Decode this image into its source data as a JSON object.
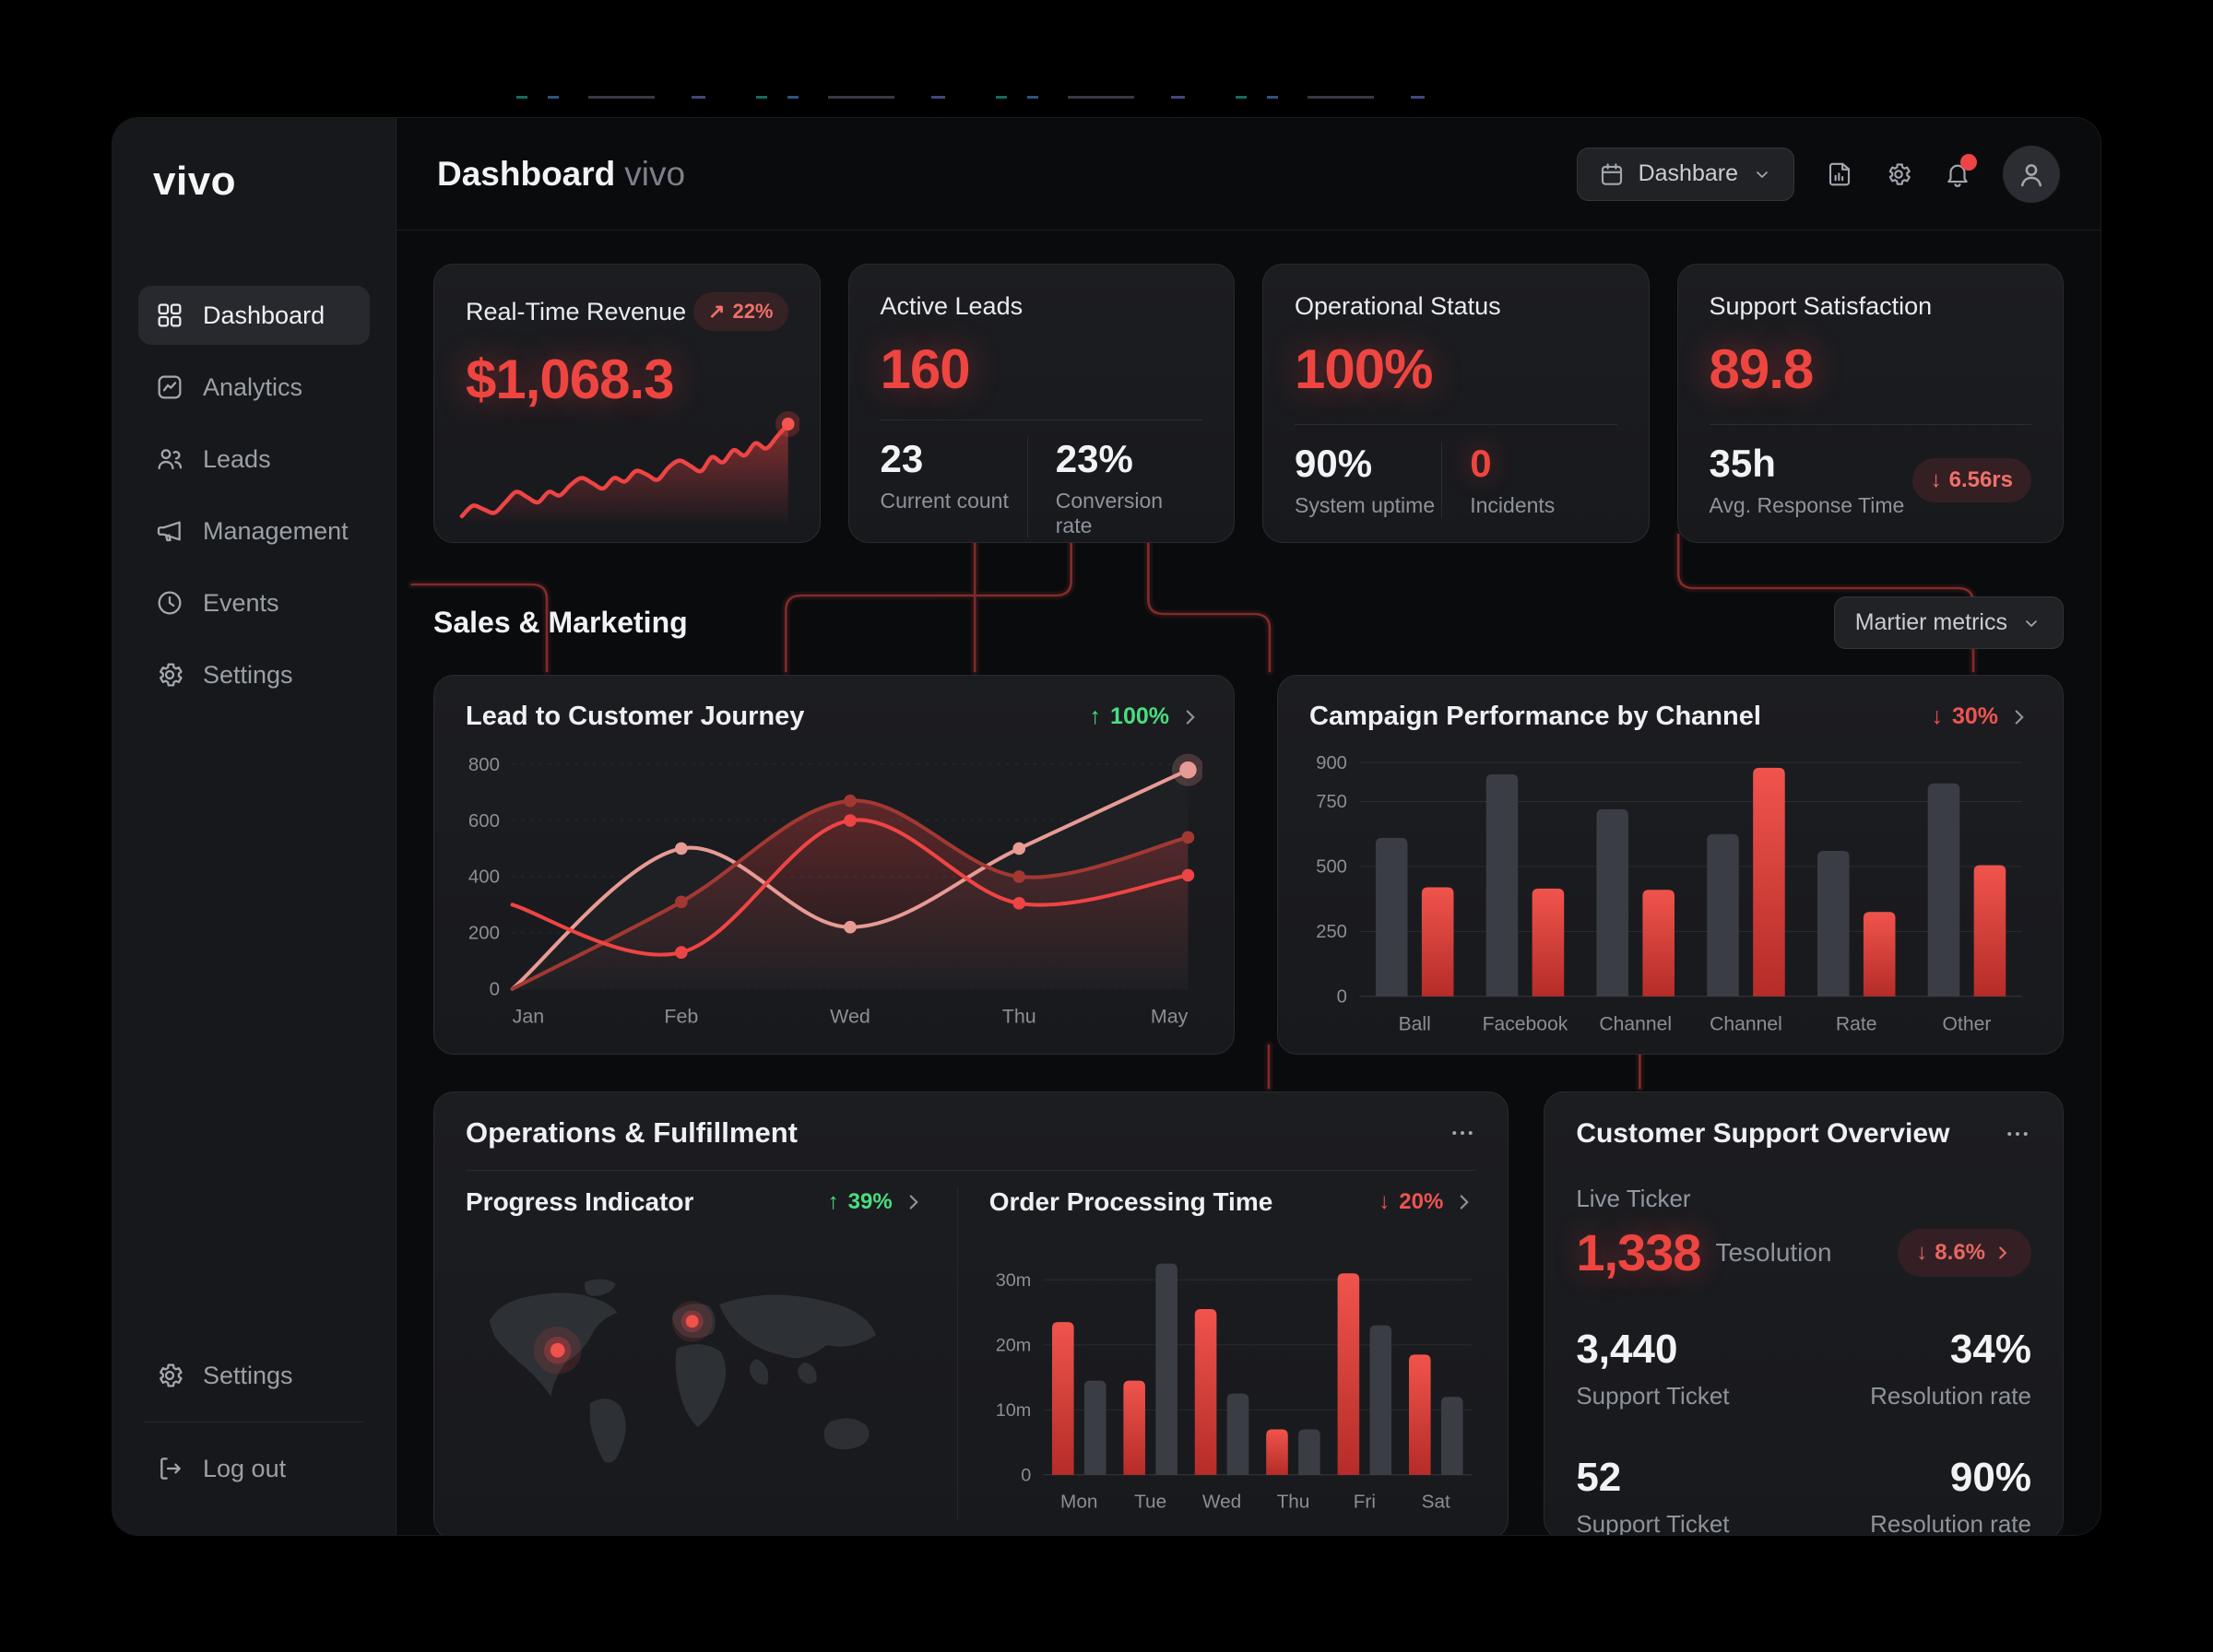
{
  "brand": {
    "logo": "vivo"
  },
  "sidebar": {
    "items": [
      {
        "label": "Dashboard"
      },
      {
        "label": "Analytics"
      },
      {
        "label": "Leads"
      },
      {
        "label": "Management"
      },
      {
        "label": "Events"
      },
      {
        "label": "Settings"
      }
    ],
    "footer": [
      {
        "label": "Settings"
      },
      {
        "label": "Log out"
      }
    ]
  },
  "header": {
    "title": "Dashboard",
    "subtitle": "vivo",
    "range_picker": "Dashbare"
  },
  "kpis": [
    {
      "title": "Real-Time Revenue",
      "badge_arrow": "↗",
      "badge": "22%",
      "value": "$1,068.3"
    },
    {
      "title": "Active Leads",
      "value": "160",
      "stats": [
        {
          "value": "23",
          "label": "Current count"
        },
        {
          "value": "23%",
          "label": "Conversion rate"
        }
      ]
    },
    {
      "title": "Operational Status",
      "value": "100%",
      "stats": [
        {
          "value": "90%",
          "label": "System uptime"
        },
        {
          "value": "0",
          "label": "Incidents"
        }
      ]
    },
    {
      "title": "Support Satisfaction",
      "value": "89.8",
      "stat_value": "35h",
      "stat_label": "Avg. Response Time",
      "badge_arrow": "↓",
      "badge": "6.56rs"
    }
  ],
  "sales": {
    "title": "Sales & Marketing",
    "metrics_picker": "Martier metrics"
  },
  "journey": {
    "title": "Lead to Customer Journey",
    "delta_arrow": "↑",
    "delta": "100%"
  },
  "campaign": {
    "title": "Campaign Performance by Channel",
    "delta_arrow": "↓",
    "delta": "30%"
  },
  "operations": {
    "title": "Operations & Fulfillment",
    "progress": {
      "title": "Progress Indicator",
      "delta_arrow": "↑",
      "delta": "39%"
    },
    "order": {
      "title": "Order Processing Time",
      "delta_arrow": "↓",
      "delta": "20%"
    }
  },
  "support": {
    "title": "Customer Support Overview",
    "live_label": "Live Ticker",
    "live_value": "1,338",
    "live_suffix": "Tesolution",
    "live_delta_arrow": "↓",
    "live_delta": "8.6%",
    "rows": [
      {
        "left_value": "3,440",
        "left_label": "Support Ticket",
        "right_value": "34%",
        "right_label": "Resolution rate"
      },
      {
        "left_value": "52",
        "left_label": "Support Ticket",
        "right_value": "90%",
        "right_label": "Resolution rate"
      }
    ]
  },
  "colors": {
    "accent_red": "#ef4444",
    "green": "#4ade80",
    "bar_gray": "#3a3d43",
    "grid": "#2b2d31"
  },
  "chart_data": [
    {
      "id": "revenue-spark",
      "type": "spark",
      "title": "Real-Time Revenue sparkline",
      "color": "#ef4444",
      "values": [
        10,
        16,
        14,
        12,
        18,
        24,
        21,
        18,
        24,
        22,
        28,
        32,
        29,
        26,
        32,
        30,
        36,
        34,
        31,
        38,
        42,
        39,
        36,
        44,
        41,
        48,
        45,
        52,
        49,
        56,
        63
      ]
    },
    {
      "id": "journey",
      "type": "line",
      "title": "Lead to Customer Journey",
      "x": [
        "Jan",
        "Feb",
        "Wed",
        "Thu",
        "May"
      ],
      "ylim": [
        0,
        800
      ],
      "yticks": [
        0,
        200,
        400,
        600,
        800
      ],
      "grid": "dashed",
      "series": [
        {
          "name": "journey-top",
          "color": "#e79b94",
          "values": [
            0,
            500,
            220,
            500,
            780
          ]
        },
        {
          "name": "journey-mid",
          "color": "#a33833",
          "values": [
            0,
            310,
            670,
            400,
            540
          ]
        },
        {
          "name": "journey-base",
          "color": "#ef4444",
          "values": [
            300,
            130,
            600,
            305,
            405
          ]
        }
      ]
    },
    {
      "id": "campaign",
      "type": "bar",
      "title": "Campaign Performance by Channel",
      "categories": [
        "Ball",
        "Facebook",
        "Channel",
        "Channel",
        "Rate",
        "Other"
      ],
      "ylim": [
        0,
        900
      ],
      "yticks": [
        0,
        250,
        500,
        750,
        900
      ],
      "series": [
        {
          "name": "organic",
          "color": "#3a3d43",
          "values": [
            610,
            855,
            720,
            625,
            560,
            820
          ]
        },
        {
          "name": "paid",
          "color": "#e2403c",
          "values": [
            420,
            415,
            410,
            880,
            325,
            505
          ]
        }
      ]
    },
    {
      "id": "order",
      "type": "bar",
      "title": "Order Processing Time",
      "categories": [
        "Mon",
        "Tue",
        "Wed",
        "Thu",
        "Fri",
        "Sat"
      ],
      "ylim": [
        0,
        34
      ],
      "yticks": [
        0,
        10,
        20,
        30
      ],
      "ytick_labels": [
        "0",
        "10m",
        "20m",
        "30m"
      ],
      "series": [
        {
          "name": "processing",
          "color": "#e2403c",
          "values": [
            23.5,
            14.5,
            25.5,
            7,
            31,
            18.5
          ]
        },
        {
          "name": "baseline",
          "color": "#3a3d43",
          "values": [
            14.5,
            32.5,
            12.5,
            7,
            23,
            12
          ]
        }
      ]
    }
  ]
}
